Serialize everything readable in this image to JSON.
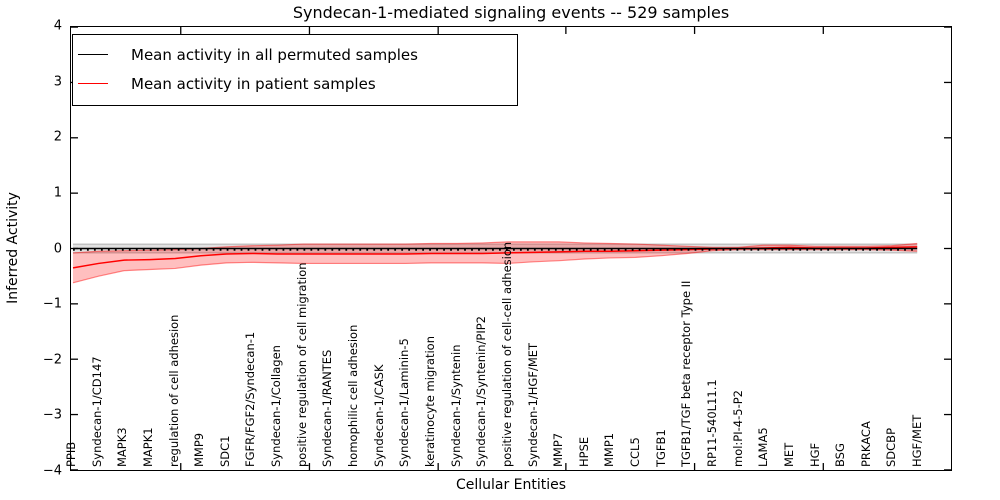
{
  "title": "Syndecan-1-mediated signaling events -- 529 samples",
  "legend": {
    "items": [
      {
        "label": "Mean activity in all permuted samples",
        "color": "#000000"
      },
      {
        "label": "Mean activity in patient samples",
        "color": "#ff0000"
      }
    ]
  },
  "axes": {
    "xlabel": "Cellular Entities",
    "ylabel": "Inferred Activity",
    "y_tick_labels": [
      "4",
      "3",
      "2",
      "1",
      "0",
      "−1",
      "−2",
      "−3",
      "−4"
    ]
  },
  "chart_data": {
    "type": "line",
    "title": "Syndecan-1-mediated signaling events -- 529 samples",
    "xlabel": "Cellular Entities",
    "ylabel": "Inferred Activity",
    "ylim": [
      -4,
      4
    ],
    "y_ticks": [
      4,
      3,
      2,
      1,
      0,
      -1,
      -2,
      -3,
      -4
    ],
    "grid": false,
    "legend_position": "upper left",
    "zero_line": {
      "value": 0,
      "style": "dotted",
      "color": "#000000"
    },
    "categories": [
      "PPIB",
      "Syndecan-1/CD147",
      "MAPK3",
      "MAPK1",
      "regulation of cell adhesion",
      "MMP9",
      "SDC1",
      "FGFR/FGF2/Syndecan-1",
      "Syndecan-1/Collagen",
      "positive regulation of cell migration",
      "Syndecan-1/RANTES",
      "homophilic cell adhesion",
      "Syndecan-1/CASK",
      "Syndecan-1/Laminin-5",
      "keratinocyte migration",
      "Syndecan-1/Syntenin",
      "Syndecan-1/Syntenin/PIP2",
      "positive regulation of cell-cell adhesion",
      "Syndecan-1/HGF/MET",
      "MMP7",
      "HPSE",
      "MMP1",
      "CCL5",
      "TGFB1",
      "TGFB1/TGF beta receptor Type II",
      "RP11-540L11.1",
      "mol:PI-4-5-P2",
      "LAMA5",
      "MET",
      "HGF",
      "BSG",
      "PRKACA",
      "SDCBP",
      "HGF/MET"
    ],
    "series": [
      {
        "name": "Mean activity in all permuted samples",
        "color": "#000000",
        "band_color": "#c8c8c8",
        "values": [
          0,
          0,
          0,
          0,
          0,
          0,
          0,
          0,
          0,
          0,
          0,
          0,
          0,
          0,
          0,
          0,
          0,
          0,
          0,
          0,
          0,
          0,
          0,
          0,
          0,
          0,
          0,
          0,
          0,
          0,
          0,
          0,
          0,
          0
        ],
        "band_halfwidth": 0.08
      },
      {
        "name": "Mean activity in patient samples",
        "color": "#ff0000",
        "band_color": "#ffb4b4",
        "values": [
          -0.35,
          -0.27,
          -0.21,
          -0.2,
          -0.18,
          -0.13,
          -0.1,
          -0.09,
          -0.1,
          -0.1,
          -0.1,
          -0.1,
          -0.1,
          -0.1,
          -0.09,
          -0.09,
          -0.09,
          -0.08,
          -0.07,
          -0.06,
          -0.05,
          -0.05,
          -0.04,
          -0.03,
          -0.02,
          -0.01,
          0.0,
          0.01,
          0.02,
          0.01,
          0.01,
          0.01,
          0.02,
          0.03
        ],
        "band_upper": [
          -0.08,
          -0.05,
          -0.04,
          -0.03,
          -0.02,
          0.0,
          0.03,
          0.05,
          0.06,
          0.08,
          0.08,
          0.08,
          0.08,
          0.08,
          0.09,
          0.09,
          0.1,
          0.12,
          0.12,
          0.12,
          0.1,
          0.09,
          0.08,
          0.06,
          0.04,
          0.02,
          0.02,
          0.06,
          0.06,
          0.04,
          0.04,
          0.04,
          0.05,
          0.09
        ],
        "band_lower": [
          -0.62,
          -0.5,
          -0.4,
          -0.38,
          -0.36,
          -0.3,
          -0.26,
          -0.25,
          -0.26,
          -0.27,
          -0.27,
          -0.27,
          -0.27,
          -0.27,
          -0.26,
          -0.26,
          -0.26,
          -0.27,
          -0.24,
          -0.22,
          -0.19,
          -0.17,
          -0.16,
          -0.13,
          -0.09,
          -0.04,
          -0.02,
          -0.02,
          -0.02,
          -0.02,
          -0.02,
          -0.02,
          -0.03,
          -0.05
        ]
      }
    ]
  }
}
